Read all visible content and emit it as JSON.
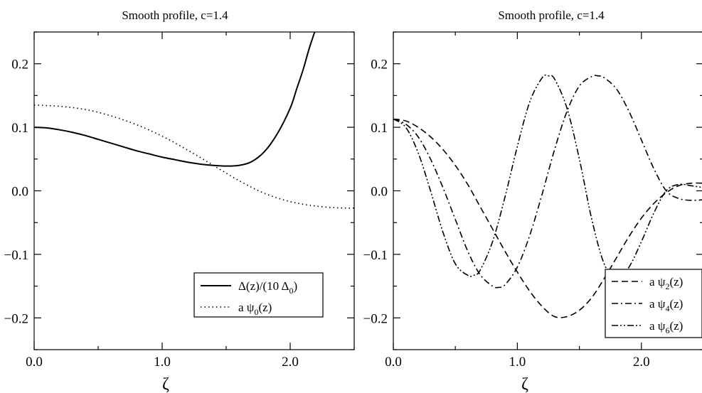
{
  "chart_data": [
    {
      "type": "line",
      "title": "Smooth profile, c=1.4",
      "xlabel": "ζ",
      "ylabel": "",
      "xlim": [
        0.0,
        2.5
      ],
      "ylim": [
        -0.25,
        0.25
      ],
      "xticks": [
        0.0,
        1.0,
        2.0
      ],
      "xtick_labels": [
        "0.0",
        "1.0",
        "2.0"
      ],
      "yticks": [
        -0.2,
        -0.1,
        0.0,
        0.1,
        0.2
      ],
      "ytick_labels": [
        "−0.2",
        "−0.1",
        "0.0",
        "0.1",
        "0.2"
      ],
      "grid": false,
      "legend_position": "bottom-right",
      "series": [
        {
          "label_main": "Δ(z)/(10 Δ",
          "label_sub": "0",
          "label_tail": ")",
          "style": "solid",
          "x": [
            0.0,
            0.1,
            0.2,
            0.3,
            0.4,
            0.5,
            0.6,
            0.7,
            0.8,
            0.9,
            1.0,
            1.1,
            1.2,
            1.3,
            1.4,
            1.5,
            1.6,
            1.7,
            1.8,
            1.9,
            2.0,
            2.05,
            2.1,
            2.15,
            2.2
          ],
          "y": [
            0.1,
            0.099,
            0.096,
            0.092,
            0.087,
            0.081,
            0.075,
            0.069,
            0.063,
            0.058,
            0.053,
            0.049,
            0.045,
            0.042,
            0.04,
            0.039,
            0.04,
            0.046,
            0.062,
            0.09,
            0.13,
            0.16,
            0.19,
            0.225,
            0.255
          ]
        },
        {
          "label_main": "a ψ",
          "label_sub": "0",
          "label_tail": "(z)",
          "style": "dotted",
          "x": [
            0.0,
            0.2,
            0.4,
            0.6,
            0.8,
            1.0,
            1.2,
            1.4,
            1.6,
            1.8,
            2.0,
            2.2,
            2.4,
            2.5
          ],
          "y": [
            0.135,
            0.133,
            0.128,
            0.118,
            0.104,
            0.086,
            0.064,
            0.04,
            0.016,
            -0.004,
            -0.017,
            -0.024,
            -0.027,
            -0.027
          ]
        }
      ]
    },
    {
      "type": "line",
      "title": "Smooth profile, c=1.4",
      "xlabel": "ζ",
      "ylabel": "",
      "xlim": [
        0.0,
        2.5
      ],
      "ylim": [
        -0.25,
        0.25
      ],
      "xticks": [
        0.0,
        1.0,
        2.0
      ],
      "xtick_labels": [
        "0.0",
        "1.0",
        "2.0"
      ],
      "yticks": [
        -0.2,
        -0.1,
        0.0,
        0.1,
        0.2
      ],
      "ytick_labels": [
        "−0.2",
        "−0.1",
        "0.0",
        "0.1",
        "0.2"
      ],
      "grid": false,
      "legend_position": "bottom-right",
      "series": [
        {
          "label_main": "a ψ",
          "label_sub": "2",
          "label_tail": "(z)",
          "style": "dashed",
          "x": [
            0.0,
            0.1,
            0.2,
            0.3,
            0.4,
            0.5,
            0.6,
            0.7,
            0.8,
            0.9,
            1.0,
            1.1,
            1.2,
            1.3,
            1.4,
            1.5,
            1.6,
            1.7,
            1.8,
            1.9,
            2.0,
            2.1,
            2.2,
            2.3,
            2.4,
            2.5
          ],
          "y": [
            0.113,
            0.11,
            0.1,
            0.085,
            0.065,
            0.04,
            0.01,
            -0.025,
            -0.06,
            -0.095,
            -0.128,
            -0.158,
            -0.182,
            -0.198,
            -0.198,
            -0.188,
            -0.168,
            -0.138,
            -0.105,
            -0.072,
            -0.043,
            -0.02,
            -0.003,
            0.008,
            0.012,
            0.012
          ]
        },
        {
          "label_main": "a ψ",
          "label_sub": "4",
          "label_tail": "(z)",
          "style": "dash-dot",
          "x": [
            0.0,
            0.1,
            0.2,
            0.3,
            0.4,
            0.5,
            0.6,
            0.7,
            0.8,
            0.85,
            0.9,
            1.0,
            1.1,
            1.2,
            1.3,
            1.4,
            1.5,
            1.6,
            1.65,
            1.7,
            1.8,
            1.9,
            2.0,
            2.1,
            2.2,
            2.3,
            2.4,
            2.5
          ],
          "y": [
            0.113,
            0.105,
            0.085,
            0.05,
            0.005,
            -0.045,
            -0.095,
            -0.132,
            -0.15,
            -0.152,
            -0.148,
            -0.12,
            -0.07,
            -0.005,
            0.065,
            0.125,
            0.165,
            0.18,
            0.181,
            0.178,
            0.16,
            0.125,
            0.08,
            0.035,
            0.0,
            -0.012,
            -0.015,
            -0.014
          ]
        },
        {
          "label_main": "a ψ",
          "label_sub": "6",
          "label_tail": "(z)",
          "style": "dash-dot-dot",
          "x": [
            0.0,
            0.1,
            0.2,
            0.3,
            0.4,
            0.5,
            0.6,
            0.65,
            0.7,
            0.8,
            0.9,
            1.0,
            1.1,
            1.2,
            1.25,
            1.3,
            1.4,
            1.5,
            1.6,
            1.7,
            1.8,
            1.9,
            2.0,
            2.1,
            2.2,
            2.3,
            2.4,
            2.5
          ],
          "y": [
            0.113,
            0.1,
            0.06,
            0.0,
            -0.065,
            -0.115,
            -0.133,
            -0.133,
            -0.125,
            -0.08,
            -0.01,
            0.07,
            0.14,
            0.178,
            0.181,
            0.176,
            0.13,
            0.05,
            -0.045,
            -0.115,
            -0.14,
            -0.12,
            -0.08,
            -0.035,
            0.0,
            0.01,
            0.008,
            0.005
          ]
        }
      ]
    }
  ]
}
